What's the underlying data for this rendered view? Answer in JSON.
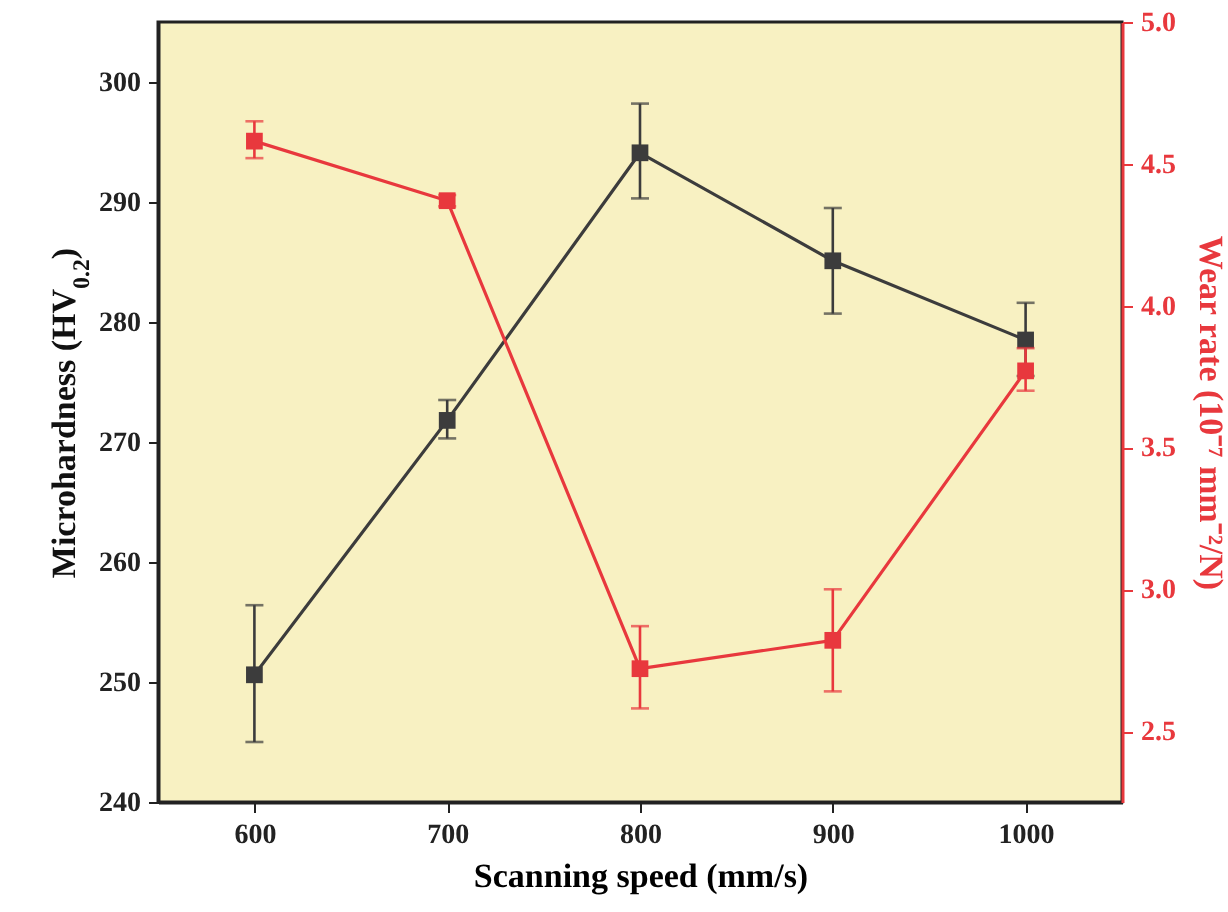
{
  "chart_data": {
    "type": "line",
    "xlabel": "Scanning speed (mm/s)",
    "ylabel": "Microhardness (HV$_{0.2}$)",
    "y2label": "Wear rate (10⁻⁷ mm⁻²/N)",
    "x": [
      600,
      700,
      800,
      900,
      1000
    ],
    "series": [
      {
        "color": "#3c3c3c",
        "values": [
          250.6,
          271.8,
          294.1,
          285.1,
          278.5
        ],
        "errors": [
          [
            245.0,
            256.4
          ],
          [
            270.3,
            273.5
          ],
          [
            290.3,
            298.2
          ],
          [
            280.7,
            289.5
          ],
          [
            275.5,
            281.6
          ]
        ]
      },
      {
        "color": "#e8383d",
        "axis": "y2",
        "values": [
          4.58,
          4.37,
          2.72,
          2.82,
          3.77
        ],
        "errors": [
          [
            4.52,
            4.65
          ],
          [
            4.35,
            4.39
          ],
          [
            2.58,
            2.87
          ],
          [
            2.64,
            3.0
          ],
          [
            3.7,
            3.85
          ]
        ]
      }
    ],
    "xlim": [
      550,
      1050
    ],
    "xticks": [
      600,
      700,
      800,
      900,
      1000
    ],
    "ylim": [
      240,
      305
    ],
    "yticks": [
      240,
      250,
      260,
      270,
      280,
      290,
      300
    ],
    "y2lim": [
      2.25,
      5.0
    ],
    "y2ticks": [
      2.5,
      {
        "value": 3,
        "label": "3.0"
      },
      3.5,
      {
        "value": 4,
        "label": "4.0"
      },
      4.5,
      {
        "value": 5,
        "label": "5.0"
      }
    ],
    "marker": "square",
    "line_style": "solid",
    "grid": false
  }
}
